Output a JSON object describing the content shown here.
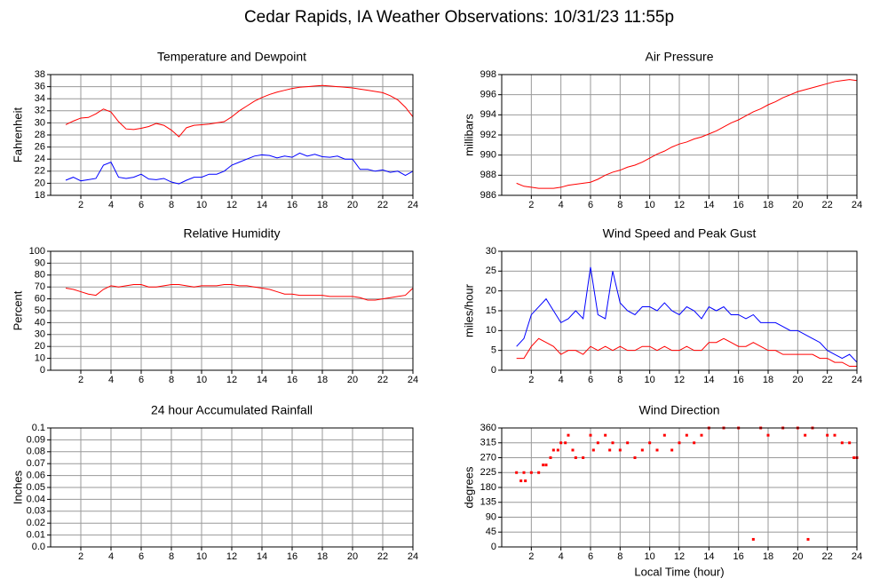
{
  "title": "Cedar Rapids, IA Weather Observations: 10/31/23 11:55p",
  "chart_data": [
    {
      "type": "line",
      "title": "Temperature and Dewpoint",
      "ylabel": "Fahrenheit",
      "grid": true,
      "xlim": [
        0,
        24
      ],
      "xticks": [
        2,
        4,
        6,
        8,
        10,
        12,
        14,
        16,
        18,
        20,
        22,
        24
      ],
      "ylim": [
        18,
        38
      ],
      "yticks": [
        18,
        20,
        22,
        24,
        26,
        28,
        30,
        32,
        34,
        36,
        38
      ],
      "x": [
        1,
        1.5,
        2,
        2.5,
        3,
        3.5,
        4,
        4.5,
        5,
        5.5,
        6,
        6.5,
        7,
        7.5,
        8,
        8.5,
        9,
        9.5,
        10,
        10.5,
        11,
        11.5,
        12,
        12.5,
        13,
        13.5,
        14,
        14.5,
        15,
        15.5,
        16,
        16.5,
        17,
        17.5,
        18,
        18.5,
        19,
        19.5,
        20,
        20.5,
        21,
        21.5,
        22,
        22.5,
        23,
        23.5,
        24
      ],
      "series": [
        {
          "color": "#ff0000",
          "values": [
            29.7,
            30.3,
            30.8,
            30.9,
            31.5,
            32.3,
            31.8,
            30.2,
            29.0,
            28.9,
            29.1,
            29.4,
            29.9,
            29.6,
            28.8,
            27.7,
            29.2,
            29.6,
            29.7,
            29.8,
            30.0,
            30.2,
            31.0,
            32.0,
            32.8,
            33.6,
            34.2,
            34.7,
            35.1,
            35.4,
            35.7,
            35.9,
            36.0,
            36.1,
            36.2,
            36.1,
            36.0,
            35.9,
            35.8,
            35.6,
            35.4,
            35.2,
            35.0,
            34.5,
            33.8,
            32.6,
            31.0
          ]
        },
        {
          "color": "#0000ff",
          "values": [
            20.5,
            21.0,
            20.4,
            20.6,
            20.8,
            23.0,
            23.5,
            21.0,
            20.8,
            21.0,
            21.5,
            20.7,
            20.6,
            20.8,
            20.2,
            19.9,
            20.5,
            21.0,
            21.0,
            21.5,
            21.5,
            22.0,
            23.0,
            23.5,
            24.0,
            24.5,
            24.7,
            24.6,
            24.2,
            24.5,
            24.3,
            25.0,
            24.5,
            24.8,
            24.4,
            24.3,
            24.5,
            24.0,
            24.0,
            22.3,
            22.3,
            22.0,
            22.2,
            21.8,
            22.0,
            21.3,
            22.0
          ]
        }
      ]
    },
    {
      "type": "line",
      "title": "Air Pressure",
      "ylabel": "millibars",
      "grid": true,
      "xlim": [
        0,
        24
      ],
      "xticks": [
        2,
        4,
        6,
        8,
        10,
        12,
        14,
        16,
        18,
        20,
        22,
        24
      ],
      "ylim": [
        986,
        998
      ],
      "yticks": [
        986,
        988,
        990,
        992,
        994,
        996,
        998
      ],
      "x": [
        1,
        1.5,
        2,
        2.5,
        3,
        3.5,
        4,
        4.5,
        5,
        5.5,
        6,
        6.5,
        7,
        7.5,
        8,
        8.5,
        9,
        9.5,
        10,
        10.5,
        11,
        11.5,
        12,
        12.5,
        13,
        13.5,
        14,
        14.5,
        15,
        15.5,
        16,
        16.5,
        17,
        17.5,
        18,
        18.5,
        19,
        19.5,
        20,
        20.5,
        21,
        21.5,
        22,
        22.5,
        23,
        23.5,
        24
      ],
      "series": [
        {
          "color": "#ff0000",
          "values": [
            987.2,
            986.9,
            986.8,
            986.7,
            986.7,
            986.7,
            986.8,
            987.0,
            987.1,
            987.2,
            987.3,
            987.6,
            988.0,
            988.3,
            988.5,
            988.8,
            989.0,
            989.3,
            989.7,
            990.1,
            990.4,
            990.8,
            991.1,
            991.3,
            991.6,
            991.8,
            992.1,
            992.4,
            992.8,
            993.2,
            993.5,
            993.9,
            994.3,
            994.6,
            995.0,
            995.3,
            995.7,
            996.0,
            996.3,
            996.5,
            996.7,
            996.9,
            997.1,
            997.3,
            997.4,
            997.5,
            997.4
          ]
        }
      ]
    },
    {
      "type": "line",
      "title": "Relative Humidity",
      "ylabel": "Percent",
      "grid": true,
      "xlim": [
        0,
        24
      ],
      "xticks": [
        2,
        4,
        6,
        8,
        10,
        12,
        14,
        16,
        18,
        20,
        22,
        24
      ],
      "ylim": [
        0,
        100
      ],
      "yticks": [
        0,
        10,
        20,
        30,
        40,
        50,
        60,
        70,
        80,
        90,
        100
      ],
      "x": [
        1,
        1.5,
        2,
        2.5,
        3,
        3.5,
        4,
        4.5,
        5,
        5.5,
        6,
        6.5,
        7,
        7.5,
        8,
        8.5,
        9,
        9.5,
        10,
        10.5,
        11,
        11.5,
        12,
        12.5,
        13,
        13.5,
        14,
        14.5,
        15,
        15.5,
        16,
        16.5,
        17,
        17.5,
        18,
        18.5,
        19,
        19.5,
        20,
        20.5,
        21,
        21.5,
        22,
        22.5,
        23,
        23.5,
        24
      ],
      "series": [
        {
          "color": "#ff0000",
          "values": [
            69,
            68,
            66,
            64,
            63,
            68,
            71,
            70,
            71,
            72,
            72,
            70,
            70,
            71,
            72,
            72,
            71,
            70,
            71,
            71,
            71,
            72,
            72,
            71,
            71,
            70,
            69,
            68,
            66,
            64,
            64,
            63,
            63,
            63,
            63,
            62,
            62,
            62,
            62,
            61,
            59,
            59,
            60,
            61,
            62,
            63,
            69
          ]
        }
      ]
    },
    {
      "type": "line",
      "title": "Wind Speed and Peak Gust",
      "ylabel": "miles/hour",
      "grid": true,
      "xlim": [
        0,
        24
      ],
      "xticks": [
        2,
        4,
        6,
        8,
        10,
        12,
        14,
        16,
        18,
        20,
        22,
        24
      ],
      "ylim": [
        0,
        30
      ],
      "yticks": [
        0,
        5,
        10,
        15,
        20,
        25,
        30
      ],
      "x": [
        1,
        1.5,
        2,
        2.5,
        3,
        3.5,
        4,
        4.5,
        5,
        5.5,
        6,
        6.5,
        7,
        7.5,
        8,
        8.5,
        9,
        9.5,
        10,
        10.5,
        11,
        11.5,
        12,
        12.5,
        13,
        13.5,
        14,
        14.5,
        15,
        15.5,
        16,
        16.5,
        17,
        17.5,
        18,
        18.5,
        19,
        19.5,
        20,
        20.5,
        21,
        21.5,
        22,
        22.5,
        23,
        23.5,
        24
      ],
      "series": [
        {
          "color": "#0000ff",
          "values": [
            6,
            8,
            14,
            16,
            18,
            15,
            12,
            13,
            15,
            13,
            26,
            14,
            13,
            25,
            17,
            15,
            14,
            16,
            16,
            15,
            17,
            15,
            14,
            16,
            15,
            13,
            16,
            15,
            16,
            14,
            14,
            13,
            14,
            12,
            12,
            12,
            11,
            10,
            10,
            9,
            8,
            7,
            5,
            4,
            3,
            4,
            2
          ]
        },
        {
          "color": "#ff0000",
          "values": [
            3,
            3,
            6,
            8,
            7,
            6,
            4,
            5,
            5,
            4,
            6,
            5,
            6,
            5,
            6,
            5,
            5,
            6,
            6,
            5,
            6,
            5,
            5,
            6,
            5,
            5,
            7,
            7,
            8,
            7,
            6,
            6,
            7,
            6,
            5,
            5,
            4,
            4,
            4,
            4,
            4,
            3,
            3,
            2,
            2,
            1,
            1
          ]
        }
      ]
    },
    {
      "type": "line",
      "title": "24 hour Accumulated Rainfall",
      "ylabel": "Inches",
      "grid": true,
      "xlim": [
        0,
        24
      ],
      "xticks": [
        2,
        4,
        6,
        8,
        10,
        12,
        14,
        16,
        18,
        20,
        22,
        24
      ],
      "ylim": [
        0,
        0.1
      ],
      "yticks": [
        {
          "value": 0,
          "label": "0.0"
        },
        0.01,
        0.02,
        0.03,
        0.04,
        0.05,
        0.06,
        0.07,
        0.08,
        0.09,
        0.1
      ],
      "x": [
        1,
        24
      ],
      "series": [
        {
          "color": "#ff0000",
          "values": [
            0,
            0
          ]
        }
      ]
    },
    {
      "type": "scatter",
      "title": "Wind Direction",
      "ylabel": "degrees",
      "xlabel": "Local Time (hour)",
      "grid": true,
      "color": "#ff0000",
      "xlim": [
        0,
        24
      ],
      "xticks": [
        2,
        4,
        6,
        8,
        10,
        12,
        14,
        16,
        18,
        20,
        22,
        24
      ],
      "ylim": [
        0,
        360
      ],
      "yticks": [
        0,
        45,
        90,
        135,
        180,
        225,
        270,
        315,
        360
      ],
      "x": [
        1,
        1.3,
        1.5,
        1.6,
        2,
        2.5,
        2.8,
        3,
        3.3,
        3.5,
        3.8,
        4,
        4.3,
        4.5,
        4.8,
        5,
        5.5,
        6,
        6.2,
        6.5,
        7,
        7.3,
        7.5,
        8,
        8.5,
        9,
        9.5,
        10,
        10.5,
        11,
        11.5,
        12,
        12.5,
        13,
        13.5,
        14,
        15,
        16,
        17,
        17.5,
        18,
        19,
        20,
        20.5,
        20.7,
        21,
        22,
        22.5,
        23,
        23.5,
        23.8,
        24
      ],
      "values": [
        225,
        200,
        225,
        200,
        225,
        225,
        248,
        248,
        270,
        293,
        293,
        315,
        315,
        338,
        293,
        270,
        270,
        338,
        293,
        315,
        338,
        293,
        315,
        293,
        315,
        270,
        293,
        315,
        293,
        338,
        293,
        315,
        338,
        315,
        338,
        360,
        360,
        360,
        23,
        360,
        338,
        360,
        360,
        338,
        23,
        360,
        338,
        338,
        315,
        315,
        270,
        270
      ]
    }
  ]
}
